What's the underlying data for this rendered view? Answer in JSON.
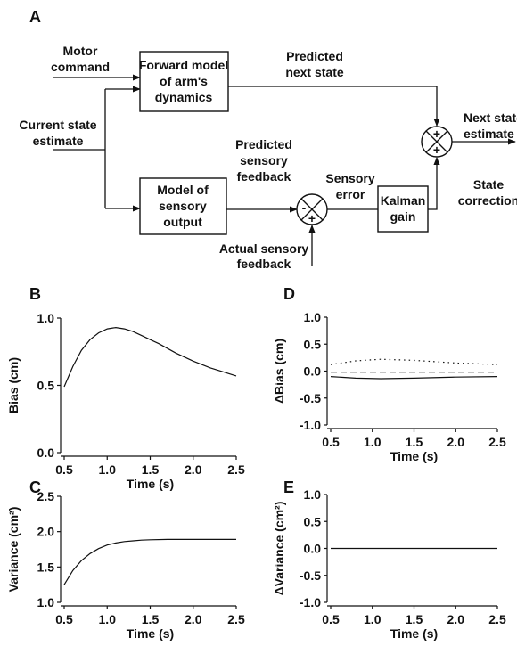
{
  "diagram": {
    "panel_label": "A",
    "inputs": {
      "motor_command": [
        "Motor",
        "command"
      ],
      "current_state": [
        "Current state",
        "estimate"
      ]
    },
    "boxes": {
      "forward_model": [
        "Forward model",
        "of arm's",
        "dynamics"
      ],
      "sensory_model": [
        "Model of",
        "sensory",
        "output"
      ],
      "kalman": [
        "Kalman",
        "gain"
      ]
    },
    "labels": {
      "predicted_next_state": [
        "Predicted",
        "next state"
      ],
      "predicted_sensory": [
        "Predicted",
        "sensory",
        "feedback"
      ],
      "sensory_error": [
        "Sensory",
        "error"
      ],
      "actual_sensory": [
        "Actual sensory",
        "feedback"
      ],
      "state_correction": [
        "State",
        "correction"
      ],
      "next_state": [
        "Next state",
        "estimate"
      ]
    },
    "signs": {
      "plus": "+",
      "minus": "-"
    }
  },
  "chart_data": [
    {
      "panel": "B",
      "type": "line",
      "xlabel": "Time (s)",
      "ylabel": "Bias (cm)",
      "xlim": [
        0.5,
        2.5
      ],
      "ylim": [
        0.0,
        1.0
      ],
      "xticks": [
        "0.5",
        "1.0",
        "1.5",
        "2.0",
        "2.5"
      ],
      "yticks": [
        "0.0",
        "0.5",
        "1.0"
      ],
      "series": [
        {
          "style": "solid",
          "x": [
            0.5,
            0.6,
            0.7,
            0.8,
            0.9,
            1.0,
            1.1,
            1.2,
            1.3,
            1.4,
            1.5,
            1.6,
            1.8,
            2.0,
            2.2,
            2.5
          ],
          "y": [
            0.49,
            0.64,
            0.76,
            0.84,
            0.89,
            0.92,
            0.93,
            0.92,
            0.9,
            0.87,
            0.84,
            0.81,
            0.74,
            0.68,
            0.63,
            0.57
          ]
        }
      ]
    },
    {
      "panel": "C",
      "type": "line",
      "xlabel": "Time (s)",
      "ylabel": "Variance (cm²)",
      "xlim": [
        0.5,
        2.5
      ],
      "ylim": [
        1.0,
        2.5
      ],
      "xticks": [
        "0.5",
        "1.0",
        "1.5",
        "2.0",
        "2.5"
      ],
      "yticks": [
        "1.0",
        "1.5",
        "2.0",
        "2.5"
      ],
      "series": [
        {
          "style": "solid",
          "x": [
            0.5,
            0.6,
            0.7,
            0.8,
            0.9,
            1.0,
            1.1,
            1.2,
            1.3,
            1.4,
            1.5,
            1.7,
            2.0,
            2.5
          ],
          "y": [
            1.25,
            1.45,
            1.59,
            1.69,
            1.76,
            1.81,
            1.84,
            1.86,
            1.87,
            1.88,
            1.885,
            1.89,
            1.89,
            1.89
          ]
        }
      ]
    },
    {
      "panel": "D",
      "type": "line",
      "xlabel": "Time (s)",
      "ylabel": "ΔBias (cm)",
      "xlim": [
        0.5,
        2.5
      ],
      "ylim": [
        -1.0,
        1.0
      ],
      "xticks": [
        "0.5",
        "1.0",
        "1.5",
        "2.0",
        "2.5"
      ],
      "yticks": [
        "-1.0",
        "-0.5",
        "0.0",
        "0.5",
        "1.0"
      ],
      "series": [
        {
          "style": "dotted",
          "x": [
            0.5,
            0.8,
            1.1,
            1.5,
            2.0,
            2.5
          ],
          "y": [
            0.12,
            0.19,
            0.22,
            0.2,
            0.15,
            0.12
          ]
        },
        {
          "style": "dashed",
          "x": [
            0.5,
            1.0,
            1.5,
            2.0,
            2.5
          ],
          "y": [
            -0.02,
            -0.02,
            -0.02,
            -0.02,
            -0.02
          ]
        },
        {
          "style": "solid",
          "x": [
            0.5,
            0.8,
            1.1,
            1.5,
            2.0,
            2.5
          ],
          "y": [
            -0.1,
            -0.13,
            -0.14,
            -0.13,
            -0.11,
            -0.1
          ]
        }
      ]
    },
    {
      "panel": "E",
      "type": "line",
      "xlabel": "Time (s)",
      "ylabel": "ΔVariance (cm²)",
      "xlim": [
        0.5,
        2.5
      ],
      "ylim": [
        -1.0,
        1.0
      ],
      "xticks": [
        "0.5",
        "1.0",
        "1.5",
        "2.0",
        "2.5"
      ],
      "yticks": [
        "-1.0",
        "-0.5",
        "0.0",
        "0.5",
        "1.0"
      ],
      "series": [
        {
          "style": "solid",
          "x": [
            0.5,
            2.5
          ],
          "y": [
            0.0,
            0.0
          ]
        }
      ]
    }
  ]
}
